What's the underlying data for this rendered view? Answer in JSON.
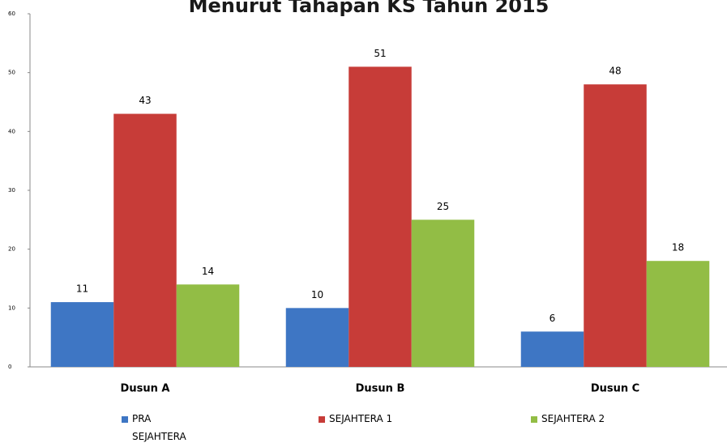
{
  "chart_data": {
    "type": "bar",
    "title": "Menurut Tahapan KS Tahun 2015",
    "categories": [
      "Dusun A",
      "Dusun B",
      "Dusun C"
    ],
    "series": [
      {
        "name": "PRA SEJAHTERA",
        "color": "#3e76c4",
        "values": [
          11,
          10,
          6
        ]
      },
      {
        "name": "SEJAHTERA 1",
        "color": "#c73c38",
        "values": [
          43,
          51,
          48
        ]
      },
      {
        "name": "SEJAHTERA 2",
        "color": "#92bd45",
        "values": [
          14,
          25,
          18
        ]
      }
    ],
    "ylim": [
      0,
      60
    ],
    "yticks": [
      0,
      10,
      20,
      30,
      40,
      50,
      60
    ],
    "grid": false
  }
}
